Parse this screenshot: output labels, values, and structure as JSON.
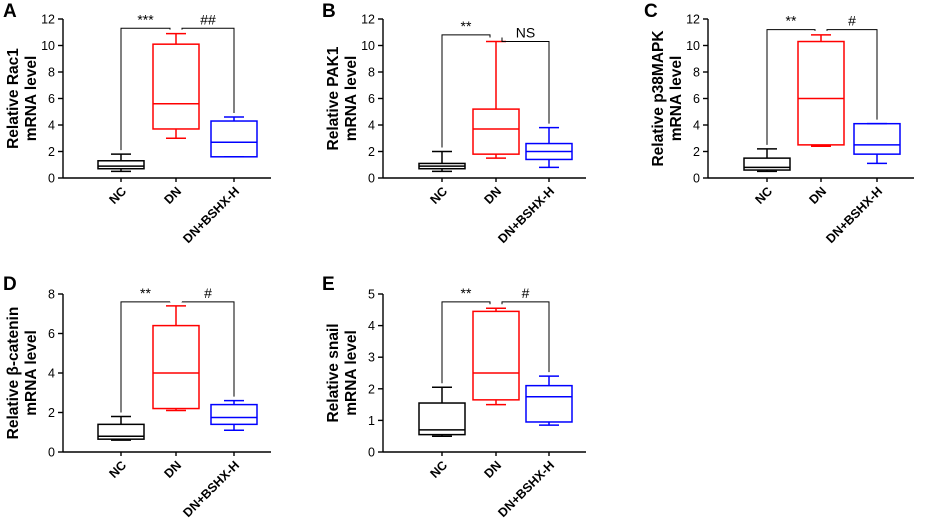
{
  "group_colors": {
    "NC": "#000000",
    "DN": "#ff0000",
    "DN+BSHX-H": "#0000ff"
  },
  "chart_data": [
    {
      "type": "box",
      "panel": "A",
      "ylabel": [
        "Relative Rac1",
        "mRNA level"
      ],
      "ylim": [
        0,
        12
      ],
      "yticks": [
        0,
        2,
        4,
        6,
        8,
        10,
        12
      ],
      "categories": [
        "NC",
        "DN",
        "DN+BSHX-H"
      ],
      "boxes": [
        {
          "min": 0.5,
          "q1": 0.7,
          "median": 0.9,
          "q3": 1.3,
          "max": 1.8
        },
        {
          "min": 3.0,
          "q1": 3.7,
          "median": 5.6,
          "q3": 10.1,
          "max": 10.9
        },
        {
          "min": 1.6,
          "q1": 1.6,
          "median": 2.7,
          "q3": 4.3,
          "max": 4.6
        }
      ],
      "comparisons": [
        {
          "from": 0,
          "to": 1,
          "label": "***",
          "y": 11.3
        },
        {
          "from": 1,
          "to": 2,
          "label": "##",
          "y": 11.3
        }
      ]
    },
    {
      "type": "box",
      "panel": "B",
      "ylabel": [
        "Relative PAK1",
        "mRNA level"
      ],
      "ylim": [
        0,
        12
      ],
      "yticks": [
        0,
        2,
        4,
        6,
        8,
        10,
        12
      ],
      "categories": [
        "NC",
        "DN",
        "DN+BSHX-H"
      ],
      "boxes": [
        {
          "min": 0.5,
          "q1": 0.7,
          "median": 0.9,
          "q3": 1.1,
          "max": 2.0
        },
        {
          "min": 1.5,
          "q1": 1.8,
          "median": 3.7,
          "q3": 5.2,
          "max": 10.3
        },
        {
          "min": 0.8,
          "q1": 1.4,
          "median": 2.0,
          "q3": 2.6,
          "max": 3.8
        }
      ],
      "comparisons": [
        {
          "from": 0,
          "to": 1,
          "label": "**",
          "y": 10.8
        },
        {
          "from": 1,
          "to": 2,
          "label": "NS",
          "y": 10.3
        }
      ]
    },
    {
      "type": "box",
      "panel": "C",
      "ylabel": [
        "Relative p38MAPK",
        "mRNA level"
      ],
      "ylim": [
        0,
        12
      ],
      "yticks": [
        0,
        2,
        4,
        6,
        8,
        10,
        12
      ],
      "categories": [
        "NC",
        "DN",
        "DN+BSHX-H"
      ],
      "boxes": [
        {
          "min": 0.5,
          "q1": 0.6,
          "median": 0.8,
          "q3": 1.5,
          "max": 2.2
        },
        {
          "min": 2.4,
          "q1": 2.5,
          "median": 6.0,
          "q3": 10.3,
          "max": 10.8
        },
        {
          "min": 1.1,
          "q1": 1.8,
          "median": 2.5,
          "q3": 4.1,
          "max": 4.1
        }
      ],
      "comparisons": [
        {
          "from": 0,
          "to": 1,
          "label": "**",
          "y": 11.2
        },
        {
          "from": 1,
          "to": 2,
          "label": "#",
          "y": 11.2
        }
      ]
    },
    {
      "type": "box",
      "panel": "D",
      "ylabel": [
        "Relative β-catenin",
        "mRNA level"
      ],
      "ylim": [
        0,
        8
      ],
      "yticks": [
        0,
        2,
        4,
        6,
        8
      ],
      "categories": [
        "NC",
        "DN",
        "DN+BSHX-H"
      ],
      "boxes": [
        {
          "min": 0.6,
          "q1": 0.65,
          "median": 0.8,
          "q3": 1.4,
          "max": 1.8
        },
        {
          "min": 2.1,
          "q1": 2.2,
          "median": 4.0,
          "q3": 6.4,
          "max": 7.4
        },
        {
          "min": 1.1,
          "q1": 1.4,
          "median": 1.75,
          "q3": 2.4,
          "max": 2.6
        }
      ],
      "comparisons": [
        {
          "from": 0,
          "to": 1,
          "label": "**",
          "y": 7.6
        },
        {
          "from": 1,
          "to": 2,
          "label": "#",
          "y": 7.6
        }
      ]
    },
    {
      "type": "box",
      "panel": "E",
      "ylabel": [
        "Relative snail",
        "mRNA level"
      ],
      "ylim": [
        0,
        5
      ],
      "yticks": [
        0,
        1,
        2,
        3,
        4,
        5
      ],
      "categories": [
        "NC",
        "DN",
        "DN+BSHX-H"
      ],
      "boxes": [
        {
          "min": 0.5,
          "q1": 0.55,
          "median": 0.7,
          "q3": 1.55,
          "max": 2.05
        },
        {
          "min": 1.5,
          "q1": 1.65,
          "median": 2.5,
          "q3": 4.45,
          "max": 4.55
        },
        {
          "min": 0.85,
          "q1": 0.95,
          "median": 1.75,
          "q3": 2.1,
          "max": 2.4
        }
      ],
      "comparisons": [
        {
          "from": 0,
          "to": 1,
          "label": "**",
          "y": 4.75
        },
        {
          "from": 1,
          "to": 2,
          "label": "#",
          "y": 4.75
        }
      ]
    }
  ]
}
